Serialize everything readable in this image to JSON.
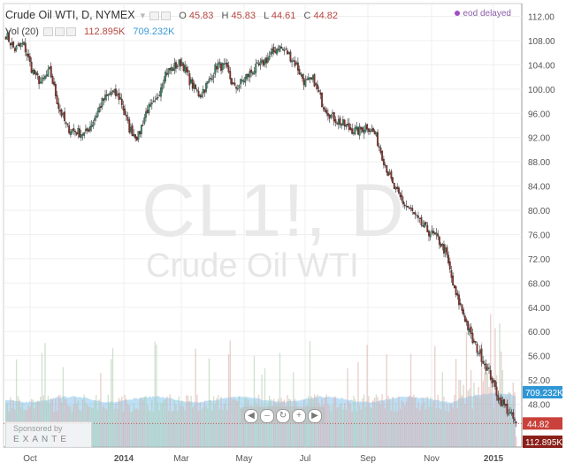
{
  "legend": {
    "title": "Crude Oil WTI, D, NYMEX",
    "o_label": "O",
    "o_value": "45.83",
    "h_label": "H",
    "h_value": "45.83",
    "l_label": "L",
    "l_value": "44.61",
    "c_label": "C",
    "c_value": "44.82",
    "vol_label": "Vol (20)",
    "vol_value": "112.895K",
    "vol_ma_value": "709.232K"
  },
  "status": {
    "delayed": "eod delayed"
  },
  "watermark": {
    "symbol": "CL1!, D",
    "name": "Crude Oil WTI"
  },
  "sponsor": {
    "label": "Sponsored by",
    "brand": "EXANTE"
  },
  "navbar": {
    "buttons": [
      "◀",
      "–",
      "↻",
      "+",
      "▶"
    ]
  },
  "colors": {
    "up": "#3c8f6a",
    "down": "#8f2f28",
    "volume": "#90bce6",
    "volume_ma": "#6fbbea",
    "price_tag": "#c9413a",
    "vol_tag": "#2f97d6"
  },
  "chart_data": {
    "type": "candlestick",
    "title": "Crude Oil WTI, D, NYMEX",
    "y_axis": {
      "ticks": [
        "48.00",
        "52.00",
        "56.00",
        "60.00",
        "64.00",
        "68.00",
        "72.00",
        "76.00",
        "80.00",
        "84.00",
        "88.00",
        "92.00",
        "96.00",
        "100.00",
        "104.00",
        "108.00",
        "112.00"
      ],
      "range": [
        44.0,
        112.0
      ]
    },
    "x_axis": {
      "ticks": [
        "Oct",
        "2014",
        "Mar",
        "May",
        "Jul",
        "Sep",
        "Nov",
        "2015"
      ]
    },
    "close_path": [
      {
        "x": "Sep",
        "y": 109.0
      },
      {
        "x": "Sep",
        "y": 106.5
      },
      {
        "x": "Sep",
        "y": 107.5
      },
      {
        "x": "Oct",
        "y": 103.0
      },
      {
        "x": "Oct",
        "y": 101.0
      },
      {
        "x": "Oct",
        "y": 103.0
      },
      {
        "x": "Oct",
        "y": 97.0
      },
      {
        "x": "Nov",
        "y": 93.5
      },
      {
        "x": "Nov",
        "y": 93.0
      },
      {
        "x": "Nov",
        "y": 92.5
      },
      {
        "x": "Dec",
        "y": 95.0
      },
      {
        "x": "Dec",
        "y": 98.0
      },
      {
        "x": "Dec",
        "y": 99.5
      },
      {
        "x": "2014",
        "y": 98.5
      },
      {
        "x": "2014",
        "y": 93.5
      },
      {
        "x": "2014",
        "y": 92.0
      },
      {
        "x": "2014",
        "y": 96.5
      },
      {
        "x": "Feb",
        "y": 97.5
      },
      {
        "x": "Feb",
        "y": 102.5
      },
      {
        "x": "Feb",
        "y": 103.5
      },
      {
        "x": "Mar",
        "y": 104.5
      },
      {
        "x": "Mar",
        "y": 101.0
      },
      {
        "x": "Mar",
        "y": 99.0
      },
      {
        "x": "Apr",
        "y": 101.0
      },
      {
        "x": "Apr",
        "y": 104.0
      },
      {
        "x": "Apr",
        "y": 103.5
      },
      {
        "x": "May",
        "y": 100.0
      },
      {
        "x": "May",
        "y": 101.5
      },
      {
        "x": "May",
        "y": 103.0
      },
      {
        "x": "Jun",
        "y": 104.0
      },
      {
        "x": "Jun",
        "y": 105.5
      },
      {
        "x": "Jun",
        "y": 107.0
      },
      {
        "x": "Jul",
        "y": 106.0
      },
      {
        "x": "Jul",
        "y": 104.0
      },
      {
        "x": "Jul",
        "y": 101.0
      },
      {
        "x": "Aug",
        "y": 101.5
      },
      {
        "x": "Aug",
        "y": 97.5
      },
      {
        "x": "Aug",
        "y": 95.5
      },
      {
        "x": "Sep",
        "y": 94.5
      },
      {
        "x": "Sep",
        "y": 93.5
      },
      {
        "x": "Sep",
        "y": 93.0
      },
      {
        "x": "Oct",
        "y": 94.0
      },
      {
        "x": "Oct",
        "y": 92.5
      },
      {
        "x": "Oct",
        "y": 88.0
      },
      {
        "x": "Oct",
        "y": 84.0
      },
      {
        "x": "Oct",
        "y": 81.5
      },
      {
        "x": "Nov",
        "y": 80.0
      },
      {
        "x": "Nov",
        "y": 78.0
      },
      {
        "x": "Nov",
        "y": 76.5
      },
      {
        "x": "Nov",
        "y": 75.5
      },
      {
        "x": "Nov",
        "y": 73.0
      },
      {
        "x": "Dec",
        "y": 66.5
      },
      {
        "x": "Dec",
        "y": 63.0
      },
      {
        "x": "Dec",
        "y": 58.5
      },
      {
        "x": "Dec",
        "y": 56.0
      },
      {
        "x": "2015",
        "y": 53.0
      },
      {
        "x": "2015",
        "y": 49.0
      },
      {
        "x": "2015",
        "y": 47.0
      },
      {
        "x": "2015",
        "y": 44.82
      }
    ],
    "last_price": 44.82,
    "volume_last": "112.895K",
    "volume_ma": "709.232K"
  }
}
